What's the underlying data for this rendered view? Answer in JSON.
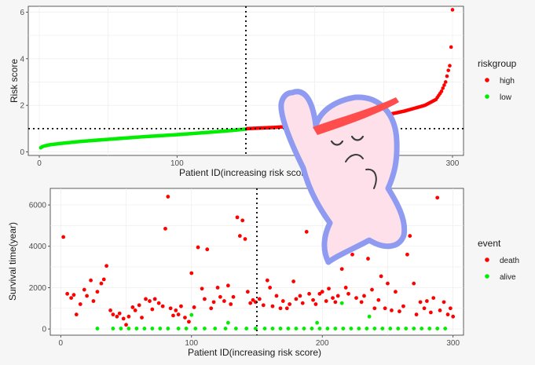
{
  "colors": {
    "high": "#ff0000",
    "low": "#00ee00",
    "death": "#ff0000",
    "alive": "#00ee00",
    "sticker_fill": "#fde0ea",
    "sticker_outline": "#8e9bf0",
    "sticker_band": "#ff4d4d"
  },
  "sticker": {
    "icon": "cartoon-waving-character-sticker"
  },
  "chart_data": [
    {
      "type": "scatter",
      "xlabel": "Patient ID(increasing risk score)",
      "ylabel": "Risk score",
      "xlim": [
        -8,
        308
      ],
      "ylim": [
        -0.15,
        6.25
      ],
      "xticks": [
        "0",
        "100",
        "200",
        "300"
      ],
      "yticks": [
        "0",
        "2",
        "4",
        "6"
      ],
      "cutoff_x": 150,
      "cutoff_y": 1.0,
      "legend": {
        "title": "riskgroup",
        "placement": "right",
        "entries": [
          "high",
          "low"
        ]
      },
      "series": [
        {
          "name": "low",
          "x_range": [
            1,
            150
          ],
          "points": [
            [
              1,
              0.18
            ],
            [
              2,
              0.22
            ],
            [
              4,
              0.26
            ],
            [
              8,
              0.31
            ],
            [
              15,
              0.36
            ],
            [
              30,
              0.45
            ],
            [
              50,
              0.54
            ],
            [
              75,
              0.65
            ],
            [
              100,
              0.74
            ],
            [
              125,
              0.85
            ],
            [
              140,
              0.92
            ],
            [
              150,
              0.98
            ]
          ]
        },
        {
          "name": "high",
          "x_range": [
            151,
            300
          ],
          "points": [
            [
              151,
              1.0
            ],
            [
              170,
              1.05
            ],
            [
              195,
              1.15
            ],
            [
              220,
              1.3
            ],
            [
              245,
              1.5
            ],
            [
              265,
              1.75
            ],
            [
              280,
              2.0
            ],
            [
              288,
              2.25
            ],
            [
              292,
              2.6
            ],
            [
              295,
              3.0
            ],
            [
              297,
              3.5
            ],
            [
              298,
              3.7
            ],
            [
              299,
              4.5
            ],
            [
              300,
              6.1
            ]
          ]
        }
      ]
    },
    {
      "type": "scatter",
      "xlabel": "Patient ID(increasing risk score)",
      "ylabel": "Survival time(year)",
      "xlim": [
        -8,
        308
      ],
      "ylim": [
        -300,
        6800
      ],
      "xticks": [
        "0",
        "100",
        "200",
        "300"
      ],
      "yticks": [
        "0",
        "2000",
        "4000",
        "6000"
      ],
      "cutoff_x": 150,
      "legend": {
        "title": "event",
        "placement": "right",
        "entries": [
          "death",
          "alive"
        ]
      },
      "series": [
        {
          "name": "death",
          "points": [
            [
              2,
              4450
            ],
            [
              5,
              1700
            ],
            [
              8,
              1500
            ],
            [
              10,
              1650
            ],
            [
              12,
              700
            ],
            [
              15,
              1200
            ],
            [
              18,
              1900
            ],
            [
              20,
              1600
            ],
            [
              23,
              2350
            ],
            [
              25,
              1350
            ],
            [
              28,
              1800
            ],
            [
              31,
              2200
            ],
            [
              33,
              2400
            ],
            [
              35,
              3050
            ],
            [
              38,
              900
            ],
            [
              40,
              700
            ],
            [
              43,
              600
            ],
            [
              45,
              750
            ],
            [
              48,
              500
            ],
            [
              50,
              200
            ],
            [
              52,
              600
            ],
            [
              55,
              1050
            ],
            [
              57,
              900
            ],
            [
              60,
              1150
            ],
            [
              62,
              550
            ],
            [
              65,
              1450
            ],
            [
              68,
              1350
            ],
            [
              70,
              950
            ],
            [
              72,
              1450
            ],
            [
              75,
              1250
            ],
            [
              78,
              1100
            ],
            [
              80,
              4850
            ],
            [
              82,
              6400
            ],
            [
              84,
              1000
            ],
            [
              86,
              650
            ],
            [
              88,
              900
            ],
            [
              90,
              700
            ],
            [
              92,
              1100
            ],
            [
              95,
              550
            ],
            [
              98,
              350
            ],
            [
              100,
              2700
            ],
            [
              102,
              1050
            ],
            [
              105,
              3950
            ],
            [
              108,
              1950
            ],
            [
              110,
              1450
            ],
            [
              112,
              3850
            ],
            [
              115,
              1000
            ],
            [
              117,
              1300
            ],
            [
              120,
              2000
            ],
            [
              122,
              1550
            ],
            [
              125,
              1350
            ],
            [
              128,
              2100
            ],
            [
              130,
              1200
            ],
            [
              132,
              1550
            ],
            [
              135,
              5400
            ],
            [
              137,
              4500
            ],
            [
              139,
              5250
            ],
            [
              141,
              4350
            ],
            [
              143,
              1800
            ],
            [
              145,
              1250
            ],
            [
              147,
              1400
            ],
            [
              149,
              1300
            ],
            [
              152,
              1450
            ],
            [
              155,
              1150
            ],
            [
              158,
              2350
            ],
            [
              160,
              2000
            ],
            [
              162,
              1100
            ],
            [
              165,
              1600
            ],
            [
              168,
              1000
            ],
            [
              170,
              1350
            ],
            [
              173,
              1000
            ],
            [
              175,
              1200
            ],
            [
              178,
              2300
            ],
            [
              180,
              1450
            ],
            [
              183,
              1600
            ],
            [
              185,
              1250
            ],
            [
              188,
              4700
            ],
            [
              190,
              1700
            ],
            [
              193,
              1400
            ],
            [
              195,
              1200
            ],
            [
              198,
              1700
            ],
            [
              200,
              1800
            ],
            [
              203,
              1350
            ],
            [
              205,
              1950
            ],
            [
              208,
              1500
            ],
            [
              210,
              1300
            ],
            [
              212,
              1600
            ],
            [
              215,
              2900
            ],
            [
              218,
              2000
            ],
            [
              220,
              1700
            ],
            [
              223,
              3600
            ],
            [
              226,
              1500
            ],
            [
              230,
              1300
            ],
            [
              232,
              1600
            ],
            [
              235,
              3400
            ],
            [
              238,
              1900
            ],
            [
              240,
              1000
            ],
            [
              243,
              1400
            ],
            [
              245,
              2550
            ],
            [
              248,
              1000
            ],
            [
              250,
              2200
            ],
            [
              253,
              900
            ],
            [
              256,
              1800
            ],
            [
              259,
              850
            ],
            [
              262,
              1100
            ],
            [
              265,
              3600
            ],
            [
              267,
              4500
            ],
            [
              270,
              2200
            ],
            [
              272,
              700
            ],
            [
              275,
              1300
            ],
            [
              278,
              1000
            ],
            [
              280,
              1350
            ],
            [
              283,
              800
            ],
            [
              285,
              1500
            ],
            [
              288,
              6350
            ],
            [
              290,
              900
            ],
            [
              293,
              1300
            ],
            [
              296,
              700
            ],
            [
              298,
              1000
            ],
            [
              300,
              600
            ]
          ]
        },
        {
          "name": "alive",
          "points": [
            [
              28,
              20
            ],
            [
              40,
              20
            ],
            [
              46,
              20
            ],
            [
              52,
              20
            ],
            [
              58,
              20
            ],
            [
              64,
              20
            ],
            [
              70,
              20
            ],
            [
              76,
              20
            ],
            [
              82,
              20
            ],
            [
              90,
              20
            ],
            [
              96,
              20
            ],
            [
              103,
              20
            ],
            [
              110,
              20
            ],
            [
              118,
              20
            ],
            [
              126,
              20
            ],
            [
              134,
              20
            ],
            [
              142,
              20
            ],
            [
              149,
              20
            ],
            [
              156,
              20
            ],
            [
              162,
              20
            ],
            [
              168,
              20
            ],
            [
              174,
              20
            ],
            [
              180,
              20
            ],
            [
              186,
              20
            ],
            [
              192,
              20
            ],
            [
              198,
              20
            ],
            [
              204,
              20
            ],
            [
              210,
              20
            ],
            [
              216,
              20
            ],
            [
              222,
              20
            ],
            [
              228,
              20
            ],
            [
              234,
              20
            ],
            [
              240,
              20
            ],
            [
              246,
              20
            ],
            [
              252,
              20
            ],
            [
              258,
              20
            ],
            [
              264,
              20
            ],
            [
              270,
              20
            ],
            [
              276,
              20
            ],
            [
              282,
              20
            ],
            [
              288,
              20
            ],
            [
              294,
              20
            ],
            [
              100,
              680
            ],
            [
              128,
              300
            ],
            [
              196,
              300
            ],
            [
              215,
              1250
            ],
            [
              236,
              600
            ]
          ]
        }
      ]
    }
  ]
}
